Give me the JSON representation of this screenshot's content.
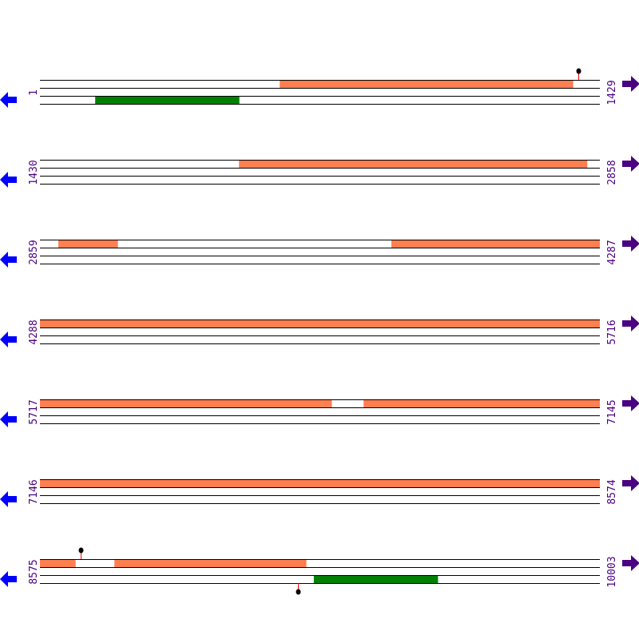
{
  "colors": {
    "line": "#000000",
    "forward_feature": "#ff7f50",
    "reverse_feature": "#008000",
    "label": "#4b0082",
    "left_arrow": "#0000ff",
    "right_arrow": "#4b0082",
    "marker_stem": "#ff0000",
    "marker_head": "#000000"
  },
  "icons": {
    "left": "arrow-left-icon",
    "right": "arrow-right-icon"
  },
  "rows": [
    {
      "start": 1,
      "end": 1429,
      "forward": [
        [
          613,
          1361
        ]
      ],
      "reverse": [
        [
          142,
          509
        ]
      ],
      "markers_up": [
        1375
      ],
      "markers_down": []
    },
    {
      "start": 1430,
      "end": 2858,
      "forward": [
        [
          1938,
          2826
        ]
      ],
      "reverse": [],
      "markers_up": [],
      "markers_down": []
    },
    {
      "start": 2859,
      "end": 4287,
      "forward": [
        [
          2906,
          3057
        ],
        [
          3756,
          4287
        ]
      ],
      "reverse": [],
      "markers_up": [],
      "markers_down": []
    },
    {
      "start": 4288,
      "end": 5716,
      "forward": [
        [
          4288,
          5716
        ]
      ],
      "reverse": [],
      "markers_up": [],
      "markers_down": []
    },
    {
      "start": 5717,
      "end": 7145,
      "forward": [
        [
          5717,
          6461
        ],
        [
          6543,
          7145
        ]
      ],
      "reverse": [],
      "markers_up": [],
      "markers_down": []
    },
    {
      "start": 7146,
      "end": 8574,
      "forward": [
        [
          7146,
          8574
        ]
      ],
      "reverse": [],
      "markers_up": [],
      "markers_down": []
    },
    {
      "start": 8575,
      "end": 10003,
      "forward": [
        [
          8575,
          8665
        ],
        [
          8765,
          9254
        ]
      ],
      "reverse": [
        [
          9274,
          9590
        ]
      ],
      "markers_up": [
        8679
      ],
      "markers_down": [
        9233
      ]
    }
  ]
}
